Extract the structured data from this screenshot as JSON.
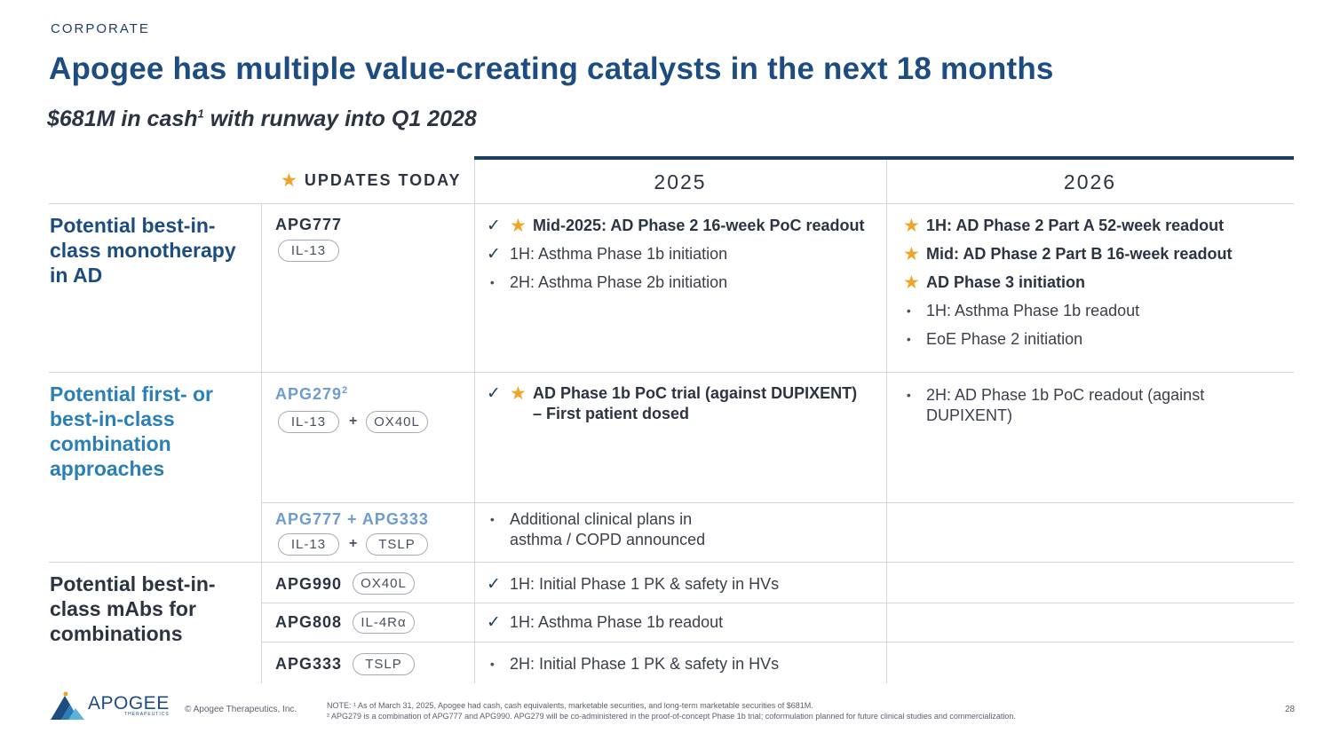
{
  "header": {
    "kicker": "CORPORATE",
    "title": "Apogee has multiple value-creating catalysts in the next 18 months",
    "subtitle_main": "$681M in cash",
    "subtitle_sup": "1",
    "subtitle_rest": " with runway into Q1 2028"
  },
  "table": {
    "updates_today": "UPDATES TODAY",
    "year_2025": "2025",
    "year_2026": "2026",
    "rows": {
      "mono": {
        "heading": "Potential best-in-class monotherapy in AD",
        "asset": "APG777",
        "pill1": "IL-13",
        "items_2025": [
          "Mid-2025: AD Phase 2 16-week PoC readout",
          "1H: Asthma Phase 1b initiation",
          "2H: Asthma Phase 2b initiation"
        ],
        "items_2026": [
          "1H: AD Phase 2 Part A 52-week readout",
          "Mid: AD Phase 2 Part B 16-week readout",
          "AD Phase 3 initiation",
          "1H: Asthma Phase 1b readout",
          "EoE Phase 2 initiation"
        ]
      },
      "combo": {
        "heading": "Potential first- or best-in-class combination approaches",
        "asset1": "APG279",
        "asset1_sup": "2",
        "asset1_pill1": "IL-13",
        "asset1_pill2": "OX40L",
        "asset1_2025_line1": "AD Phase 1b PoC trial (against DUPIXENT)",
        "asset1_2025_line2": "– First patient dosed",
        "asset1_2026": "2H: AD Phase 1b PoC readout (against DUPIXENT)",
        "asset2": "APG777 + APG333",
        "asset2_pill1": "IL-13",
        "asset2_pill2": "TSLP",
        "asset2_2025_line1": "Additional clinical plans in",
        "asset2_2025_line2": "asthma / COPD announced"
      },
      "mabs": {
        "heading": "Potential best-in-class mAbs for combinations",
        "a1": "APG990",
        "a1_pill": "OX40L",
        "a1_2025": "1H: Initial Phase 1 PK & safety in HVs",
        "a2": "APG808",
        "a2_pill": "IL-4Rα",
        "a2_2025": "1H: Asthma Phase 1b readout",
        "a3": "APG333",
        "a3_pill": "TSLP",
        "a3_2025": "2H: Initial Phase 1 PK & safety in HVs"
      }
    },
    "plus": "+"
  },
  "footer": {
    "logo_text": "APOGEE",
    "logo_sub": "THERAPEUTICS",
    "copyright": "© Apogee Therapeutics, Inc.",
    "note_line1": "NOTE: ¹ As of March 31, 2025, Apogee had cash, cash equivalents, marketable securities, and long-term marketable securities of $681M.",
    "note_line2": "² APG279 is a combination of APG777 and APG990. APG279 will be co-administered in the proof-of-concept Phase 1b trial; coformulation planned for future clinical studies and commercialization.",
    "page": "28"
  },
  "colors": {
    "title_blue": "#1d4d80",
    "teal_blue": "#2a7fb6",
    "star_gold": "#f0a52a",
    "rule_navy": "#1d3f63"
  },
  "icons": [
    "star-icon",
    "check-icon",
    "bullet-icon",
    "apogee-logo-icon"
  ]
}
